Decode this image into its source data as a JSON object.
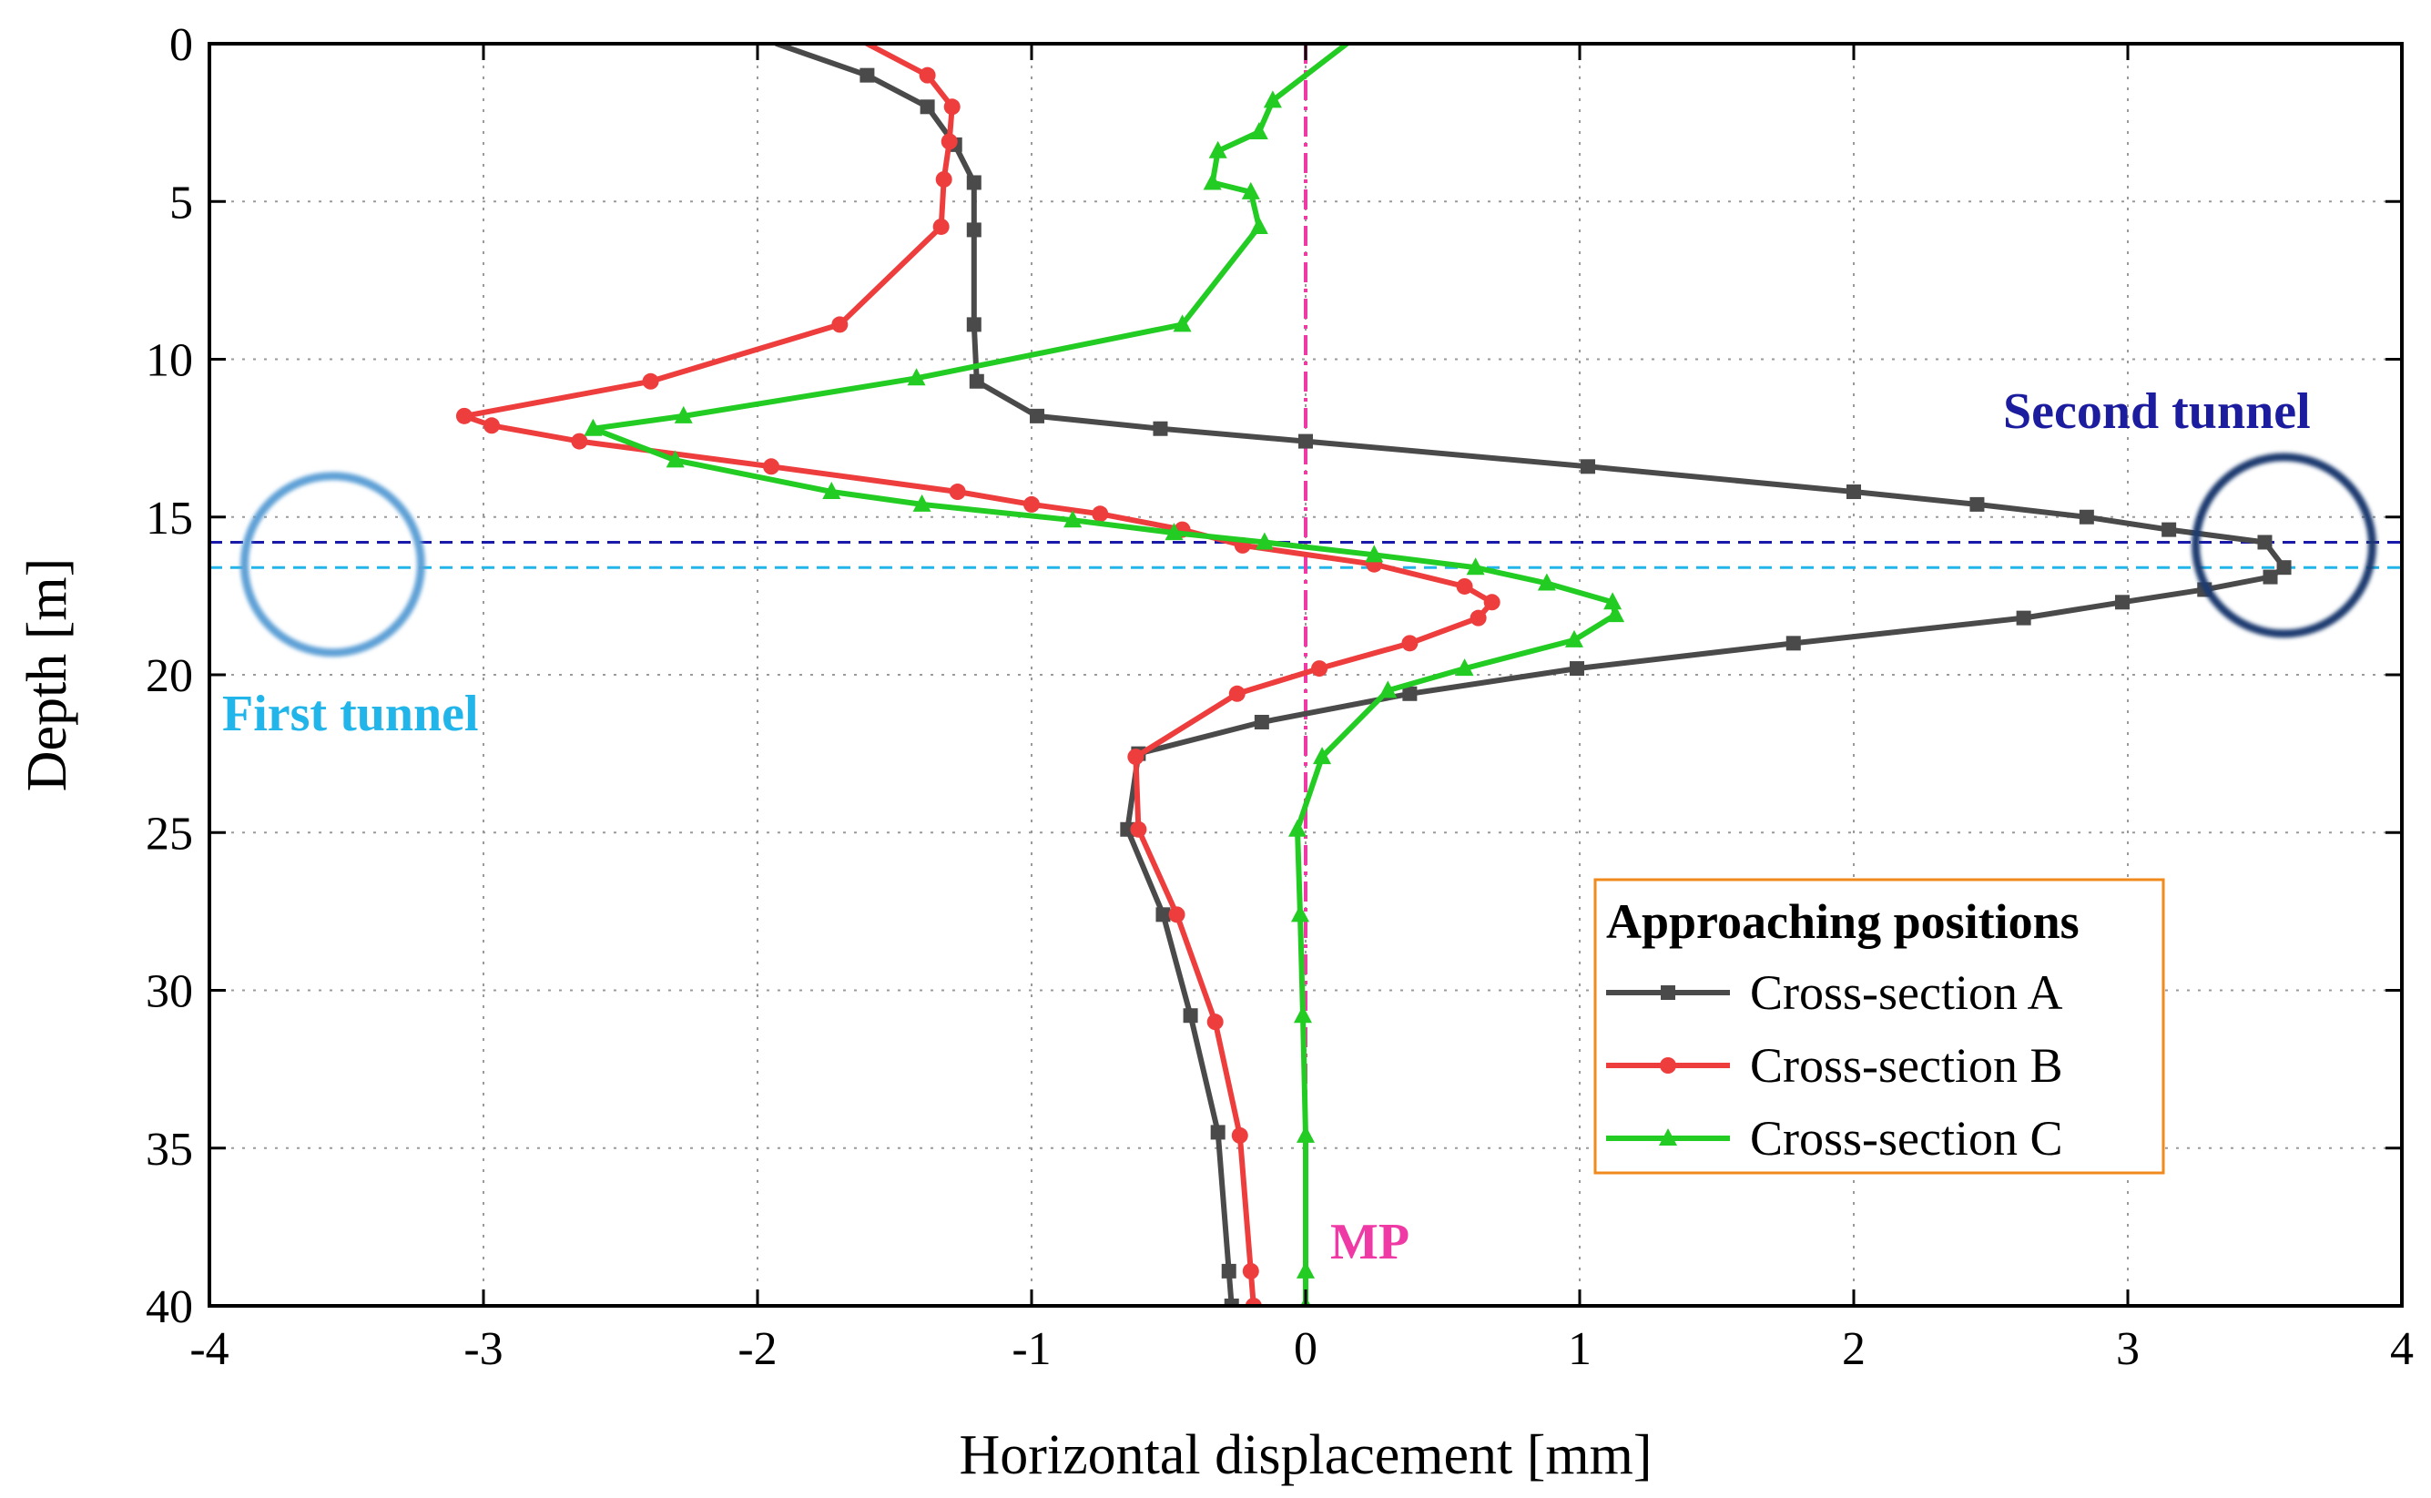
{
  "chart_data": {
    "type": "line",
    "title": "",
    "xlabel": "Horizontal displacement [mm]",
    "ylabel": "Depth [m]",
    "xlim": [
      -4,
      4
    ],
    "ylim": [
      0,
      40
    ],
    "y_inverted": true,
    "grid": true,
    "x_ticks": [
      -4,
      -3,
      -2,
      -1,
      0,
      1,
      2,
      3,
      4
    ],
    "y_ticks": [
      0,
      5,
      10,
      15,
      20,
      25,
      30,
      35,
      40
    ],
    "x_tick_labels": [
      "-4",
      "-3",
      "-2",
      "-1",
      "0",
      "1",
      "2",
      "3",
      "4"
    ],
    "y_tick_labels": [
      "0",
      "5",
      "10",
      "15",
      "20",
      "25",
      "30",
      "35",
      "40"
    ],
    "legend": {
      "title": "Approaching positions",
      "placement": "lower-right"
    },
    "series": [
      {
        "name": "Cross-section A",
        "color": "#4a4a4a",
        "marker": "square",
        "points": [
          [
            -1.93,
            0
          ],
          [
            -1.6,
            1
          ],
          [
            -1.38,
            2
          ],
          [
            -1.28,
            3.2
          ],
          [
            -1.21,
            4.4
          ],
          [
            -1.21,
            5.9
          ],
          [
            -1.21,
            8.9
          ],
          [
            -1.2,
            10.7
          ],
          [
            -0.98,
            11.8
          ],
          [
            -0.53,
            12.2
          ],
          [
            0,
            12.6
          ],
          [
            1.03,
            13.4
          ],
          [
            2.0,
            14.2
          ],
          [
            2.45,
            14.6
          ],
          [
            2.85,
            15.0
          ],
          [
            3.15,
            15.4
          ],
          [
            3.5,
            15.8
          ],
          [
            3.57,
            16.6
          ],
          [
            3.52,
            16.9
          ],
          [
            3.28,
            17.3
          ],
          [
            2.98,
            17.7
          ],
          [
            2.62,
            18.2
          ],
          [
            1.78,
            19.0
          ],
          [
            0.99,
            19.8
          ],
          [
            0.38,
            20.6
          ],
          [
            -0.16,
            21.5
          ],
          [
            -0.61,
            22.5
          ],
          [
            -0.65,
            24.9
          ],
          [
            -0.52,
            27.6
          ],
          [
            -0.42,
            30.8
          ],
          [
            -0.32,
            34.5
          ],
          [
            -0.28,
            38.9
          ],
          [
            -0.27,
            40
          ]
        ]
      },
      {
        "name": "Cross-section B",
        "color": "#ee3d3d",
        "marker": "circle",
        "points": [
          [
            -1.6,
            0
          ],
          [
            -1.38,
            1
          ],
          [
            -1.29,
            2
          ],
          [
            -1.3,
            3.1
          ],
          [
            -1.32,
            4.3
          ],
          [
            -1.33,
            5.8
          ],
          [
            -1.7,
            8.9
          ],
          [
            -2.39,
            10.7
          ],
          [
            -3.07,
            11.8
          ],
          [
            -2.97,
            12.1
          ],
          [
            -2.65,
            12.6
          ],
          [
            -1.95,
            13.4
          ],
          [
            -1.27,
            14.2
          ],
          [
            -1.0,
            14.6
          ],
          [
            -0.75,
            14.9
          ],
          [
            -0.45,
            15.4
          ],
          [
            -0.23,
            15.9
          ],
          [
            0.25,
            16.5
          ],
          [
            0.58,
            17.2
          ],
          [
            0.68,
            17.7
          ],
          [
            0.63,
            18.2
          ],
          [
            0.38,
            19.0
          ],
          [
            0.05,
            19.8
          ],
          [
            -0.25,
            20.6
          ],
          [
            -0.62,
            22.6
          ],
          [
            -0.61,
            24.9
          ],
          [
            -0.47,
            27.6
          ],
          [
            -0.33,
            31.0
          ],
          [
            -0.24,
            34.6
          ],
          [
            -0.2,
            38.9
          ],
          [
            -0.19,
            40
          ]
        ]
      },
      {
        "name": "Cross-section C",
        "color": "#22cc22",
        "marker": "triangle",
        "points": [
          [
            0.15,
            0
          ],
          [
            -0.12,
            1.8
          ],
          [
            -0.17,
            2.8
          ],
          [
            -0.32,
            3.4
          ],
          [
            -0.34,
            4.4
          ],
          [
            -0.2,
            4.7
          ],
          [
            -0.17,
            5.8
          ],
          [
            -0.45,
            8.9
          ],
          [
            -1.42,
            10.6
          ],
          [
            -2.27,
            11.8
          ],
          [
            -2.6,
            12.2
          ],
          [
            -2.3,
            13.2
          ],
          [
            -1.73,
            14.2
          ],
          [
            -1.4,
            14.6
          ],
          [
            -0.85,
            15.1
          ],
          [
            -0.48,
            15.5
          ],
          [
            -0.15,
            15.8
          ],
          [
            0.25,
            16.2
          ],
          [
            0.62,
            16.6
          ],
          [
            0.88,
            17.1
          ],
          [
            1.12,
            17.7
          ],
          [
            1.13,
            18.1
          ],
          [
            0.98,
            18.9
          ],
          [
            0.58,
            19.8
          ],
          [
            0.3,
            20.5
          ],
          [
            0.06,
            22.6
          ],
          [
            -0.03,
            24.9
          ],
          [
            -0.02,
            27.6
          ],
          [
            -0.01,
            30.8
          ],
          [
            0.0,
            34.6
          ],
          [
            0.0,
            38.9
          ],
          [
            0.0,
            40
          ]
        ]
      }
    ],
    "annotations": {
      "second_tunnel": {
        "label": "Second tunnel",
        "color": "#1c1c9e",
        "line_color": "#1a1aaa",
        "depth": 15.8,
        "circle_center": [
          3.57,
          15.9
        ],
        "circle_color": "#1f3b70"
      },
      "first_tunnel": {
        "label": "First tunnel",
        "color": "#22b5ea",
        "line_color": "#22b5ea",
        "depth": 16.6,
        "circle_center": [
          -3.55,
          16.5
        ],
        "circle_color": "#5fa0d6"
      },
      "mp": {
        "label": "MP",
        "color": "#ef3aa6",
        "x": 0
      }
    }
  }
}
